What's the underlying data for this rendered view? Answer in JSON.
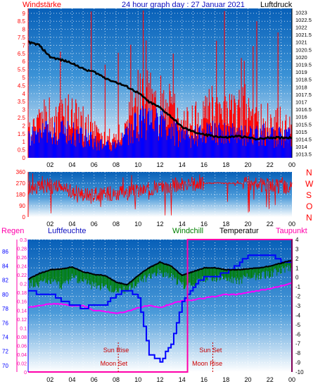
{
  "header": {
    "left_label": "Windstärke",
    "title": "24 hour graph day : 27 Januar 2021",
    "right_label": "Luftdruck"
  },
  "direction_labels": [
    "N",
    "W",
    "S",
    "O",
    "N"
  ],
  "bottom_header": {
    "regen": "Regen",
    "luftfeuchte": "Luftfeuchte",
    "windchill": "Windchill",
    "temperatur": "Temperatur",
    "taupunkt": "Taupunkt"
  },
  "astro": {
    "sun_rise": "Sun Rise",
    "sun_set": "Sun Set",
    "moon_set": "Moon Set",
    "moon_rise": "Moon Rise"
  },
  "colors": {
    "wind": "#ff0000",
    "gust": "#0000ff",
    "pressure": "#000000",
    "direction": "#ff0000",
    "humidity": "#0000ff",
    "windchill": "#008000",
    "temperature": "#000000",
    "dewpoint": "#ff00ff",
    "rain": "#ff00aa",
    "label_blue": "#1010c0"
  },
  "chart_data": [
    {
      "type": "bar",
      "title": "24 hour graph day : 27 Januar 2021",
      "x_ticks": [
        "02",
        "04",
        "06",
        "08",
        "10",
        "12",
        "14",
        "16",
        "18",
        "20",
        "22",
        "00"
      ],
      "y_left_label": "Windstärke",
      "y_left_ticks": [
        "0",
        "0.5",
        "1",
        "1.5",
        "2",
        "2.5",
        "3",
        "3.5",
        "4",
        "4.5",
        "5",
        "5.5",
        "6",
        "6.5",
        "7",
        "7.5",
        "8",
        "8.5",
        "9"
      ],
      "y_left_range": [
        0,
        9.3
      ],
      "y_right_label": "Luftdruck",
      "y_right_ticks": [
        "1013.5",
        "1014",
        "1014.5",
        "1015",
        "1015.5",
        "1016",
        "1016.5",
        "1017",
        "1017.5",
        "1018",
        "1018.5",
        "1019",
        "1019.5",
        "1020",
        "1020.5",
        "1021",
        "1021.5",
        "1022",
        "1022.5",
        "1023"
      ],
      "y_right_range": [
        1013.25,
        1023.25
      ],
      "hours": [
        0,
        1,
        2,
        3,
        4,
        5,
        6,
        7,
        8,
        9,
        10,
        11,
        12,
        13,
        14,
        15,
        16,
        17,
        18,
        19,
        20,
        21,
        22,
        23,
        24
      ],
      "wind_typical": [
        1.8,
        2.0,
        2.5,
        2.2,
        2.5,
        2.0,
        1.5,
        1.2,
        1.0,
        2.0,
        3.5,
        3.8,
        3.2,
        2.8,
        2.0,
        2.0,
        2.5,
        3.0,
        2.5,
        2.5,
        3.0,
        2.5,
        2.0,
        2.0,
        1.8
      ],
      "gust_typical": [
        1.5,
        1.8,
        1.8,
        1.8,
        1.8,
        1.5,
        1.2,
        1.0,
        0.8,
        1.5,
        2.5,
        2.5,
        2.5,
        2.0,
        1.5,
        1.5,
        1.8,
        1.8,
        1.8,
        1.8,
        1.8,
        1.8,
        1.5,
        1.5,
        1.5
      ],
      "pressure": [
        1021.0,
        1020.8,
        1020.0,
        1019.8,
        1019.6,
        1019.2,
        1019.0,
        1018.6,
        1018.3,
        1018.0,
        1017.6,
        1017.0,
        1016.6,
        1016.0,
        1015.3,
        1015.0,
        1014.8,
        1014.7,
        1014.6,
        1014.7,
        1014.6,
        1014.5,
        1014.6,
        1014.6,
        1014.6
      ]
    },
    {
      "type": "scatter",
      "x_ticks": [
        "02",
        "04",
        "06",
        "08",
        "10",
        "12",
        "14",
        "16",
        "18",
        "20",
        "22",
        "00"
      ],
      "y_ticks": [
        "0",
        "90",
        "180",
        "270",
        "360"
      ],
      "y_range": [
        0,
        360
      ],
      "hours": [
        0,
        2,
        4,
        6,
        8,
        10,
        12,
        14,
        16,
        18,
        20,
        22,
        24
      ],
      "direction_typical": [
        230,
        250,
        200,
        180,
        190,
        210,
        240,
        260,
        270,
        270,
        270,
        250,
        230
      ]
    },
    {
      "type": "line",
      "x_ticks": [
        "02",
        "04",
        "06",
        "08",
        "10",
        "12",
        "14",
        "16",
        "18",
        "20",
        "22",
        "00"
      ],
      "humidity_ticks": [
        "70",
        "72",
        "74",
        "76",
        "78",
        "80",
        "82",
        "84",
        "86"
      ],
      "humidity_range": [
        69.1,
        87.7
      ],
      "rain_ticks": [
        "0",
        "0.02",
        "0.04",
        "0.06",
        "0.08",
        "0.1",
        "0.12",
        "0.14",
        "0.16",
        "0.18",
        "0.2",
        "0.22",
        "0.24",
        "0.26",
        "0.28",
        "0.3"
      ],
      "rain_range": [
        0,
        0.3
      ],
      "temp_ticks": [
        "-10",
        "-9",
        "-8",
        "-7",
        "-6",
        "-5",
        "-4",
        "-3",
        "-2",
        "-1",
        "0",
        "1",
        "2",
        "3",
        "4"
      ],
      "temp_range": [
        -10,
        4
      ],
      "hours": [
        0,
        1,
        2,
        3,
        4,
        5,
        6,
        7,
        8,
        9,
        10,
        11,
        12,
        13,
        14,
        15,
        16,
        17,
        18,
        19,
        20,
        21,
        22,
        23,
        24
      ],
      "temperature": [
        -0.2,
        0.4,
        0.8,
        0.9,
        1.1,
        0.6,
        0.3,
        0.2,
        -0.5,
        -0.8,
        0.2,
        1.0,
        1.6,
        1.2,
        0.2,
        0.6,
        1.0,
        1.0,
        0.8,
        0.8,
        0.9,
        1.0,
        1.2,
        1.5,
        1.8
      ],
      "windchill": [
        -0.3,
        -0.2,
        0.0,
        -0.5,
        0.4,
        0.0,
        -0.5,
        -0.6,
        -0.8,
        -1.0,
        0.0,
        0.5,
        1.0,
        0.5,
        -0.5,
        -0.3,
        0.2,
        0.4,
        0.2,
        0.0,
        0.5,
        0.6,
        0.8,
        1.2,
        1.5
      ],
      "dewpoint": [
        -3.2,
        -3.0,
        -2.8,
        -2.8,
        -3.0,
        -3.0,
        -3.5,
        -3.6,
        -3.8,
        -3.6,
        -3.2,
        -3.0,
        -3.2,
        -2.8,
        -2.5,
        -2.4,
        -2.2,
        -2.0,
        -1.8,
        -1.8,
        -1.6,
        -1.4,
        -1.2,
        -0.9,
        -0.6
      ],
      "humidity": [
        80.5,
        80.0,
        80.0,
        79.0,
        78.5,
        78.0,
        78.5,
        78.5,
        80.0,
        80.5,
        79.5,
        71.5,
        70.5,
        73.0,
        79.0,
        81.0,
        82.5,
        82.5,
        83.0,
        84.0,
        85.5,
        85.5,
        85.5,
        84.5,
        84.5
      ],
      "rain": [
        0,
        0,
        0,
        0,
        0,
        0,
        0,
        0,
        0,
        0,
        0,
        0,
        0,
        0,
        0,
        0,
        0,
        0,
        0,
        0,
        0,
        0,
        0,
        0,
        0
      ],
      "rain_window_hours": [
        14.5,
        24
      ],
      "rain_window_top": 0.3,
      "astro_hours": {
        "sun_rise": 8.0,
        "moon_set": 7.8,
        "sun_set": 16.6,
        "moon_rise": 16.3
      }
    }
  ]
}
